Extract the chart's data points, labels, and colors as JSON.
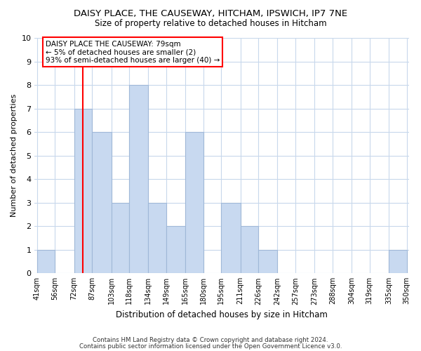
{
  "title": "DAISY PLACE, THE CAUSEWAY, HITCHAM, IPSWICH, IP7 7NE",
  "subtitle": "Size of property relative to detached houses in Hitcham",
  "xlabel": "Distribution of detached houses by size in Hitcham",
  "ylabel": "Number of detached properties",
  "bar_edges": [
    41,
    56,
    72,
    87,
    103,
    118,
    134,
    149,
    165,
    180,
    195,
    211,
    226,
    242,
    257,
    273,
    288,
    304,
    319,
    335,
    350
  ],
  "bar_heights": [
    1,
    0,
    7,
    6,
    3,
    8,
    3,
    2,
    6,
    0,
    3,
    2,
    1,
    0,
    0,
    0,
    0,
    0,
    0,
    1
  ],
  "bar_color": "#c8d9f0",
  "bar_edgecolor": "#a0b8d8",
  "red_line_x": 79,
  "ylim": [
    0,
    10
  ],
  "yticks": [
    0,
    1,
    2,
    3,
    4,
    5,
    6,
    7,
    8,
    9,
    10
  ],
  "annotation_title": "DAISY PLACE THE CAUSEWAY: 79sqm",
  "annotation_line1": "← 5% of detached houses are smaller (2)",
  "annotation_line2": "93% of semi-detached houses are larger (40) →",
  "footer_line1": "Contains HM Land Registry data © Crown copyright and database right 2024.",
  "footer_line2": "Contains public sector information licensed under the Open Government Licence v3.0.",
  "background_color": "#ffffff",
  "grid_color": "#c8d8ec"
}
